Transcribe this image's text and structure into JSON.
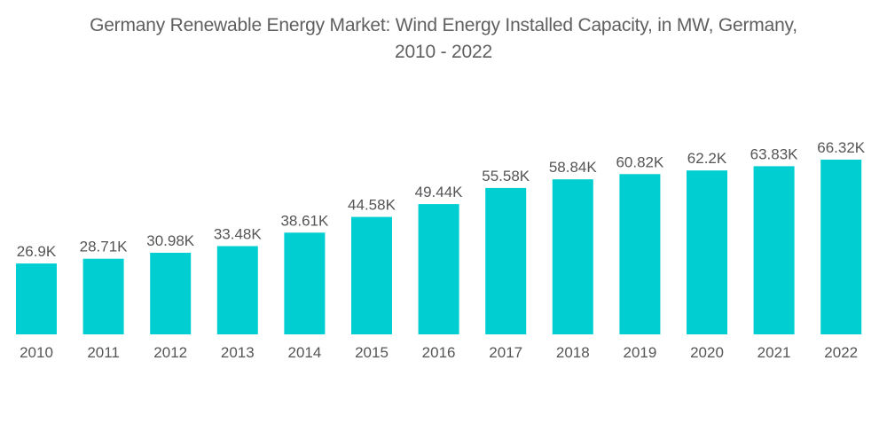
{
  "chart_data": {
    "type": "bar",
    "title_line1": "Germany Renewable Energy Market: Wind Energy Installed Capacity, in MW, Germany,",
    "title_line2": "2010 - 2022",
    "title": "Germany Renewable Energy Market: Wind Energy Installed Capacity, in MW, Germany, 2010 - 2022",
    "xlabel": "",
    "ylabel": "",
    "categories": [
      "2010",
      "2011",
      "2012",
      "2013",
      "2014",
      "2015",
      "2016",
      "2017",
      "2018",
      "2019",
      "2020",
      "2021",
      "2022"
    ],
    "values": [
      26900,
      28710,
      30980,
      33480,
      38610,
      44580,
      49440,
      55580,
      58840,
      60820,
      62200,
      63830,
      66320
    ],
    "data_labels": [
      "26.9K",
      "28.71K",
      "30.98K",
      "33.48K",
      "38.61K",
      "44.58K",
      "49.44K",
      "55.58K",
      "58.84K",
      "60.82K",
      "62.2K",
      "63.83K",
      "66.32K"
    ],
    "ylim": [
      0,
      66320
    ],
    "grid": false,
    "legend": "none",
    "bar_color": "#00CED1"
  }
}
